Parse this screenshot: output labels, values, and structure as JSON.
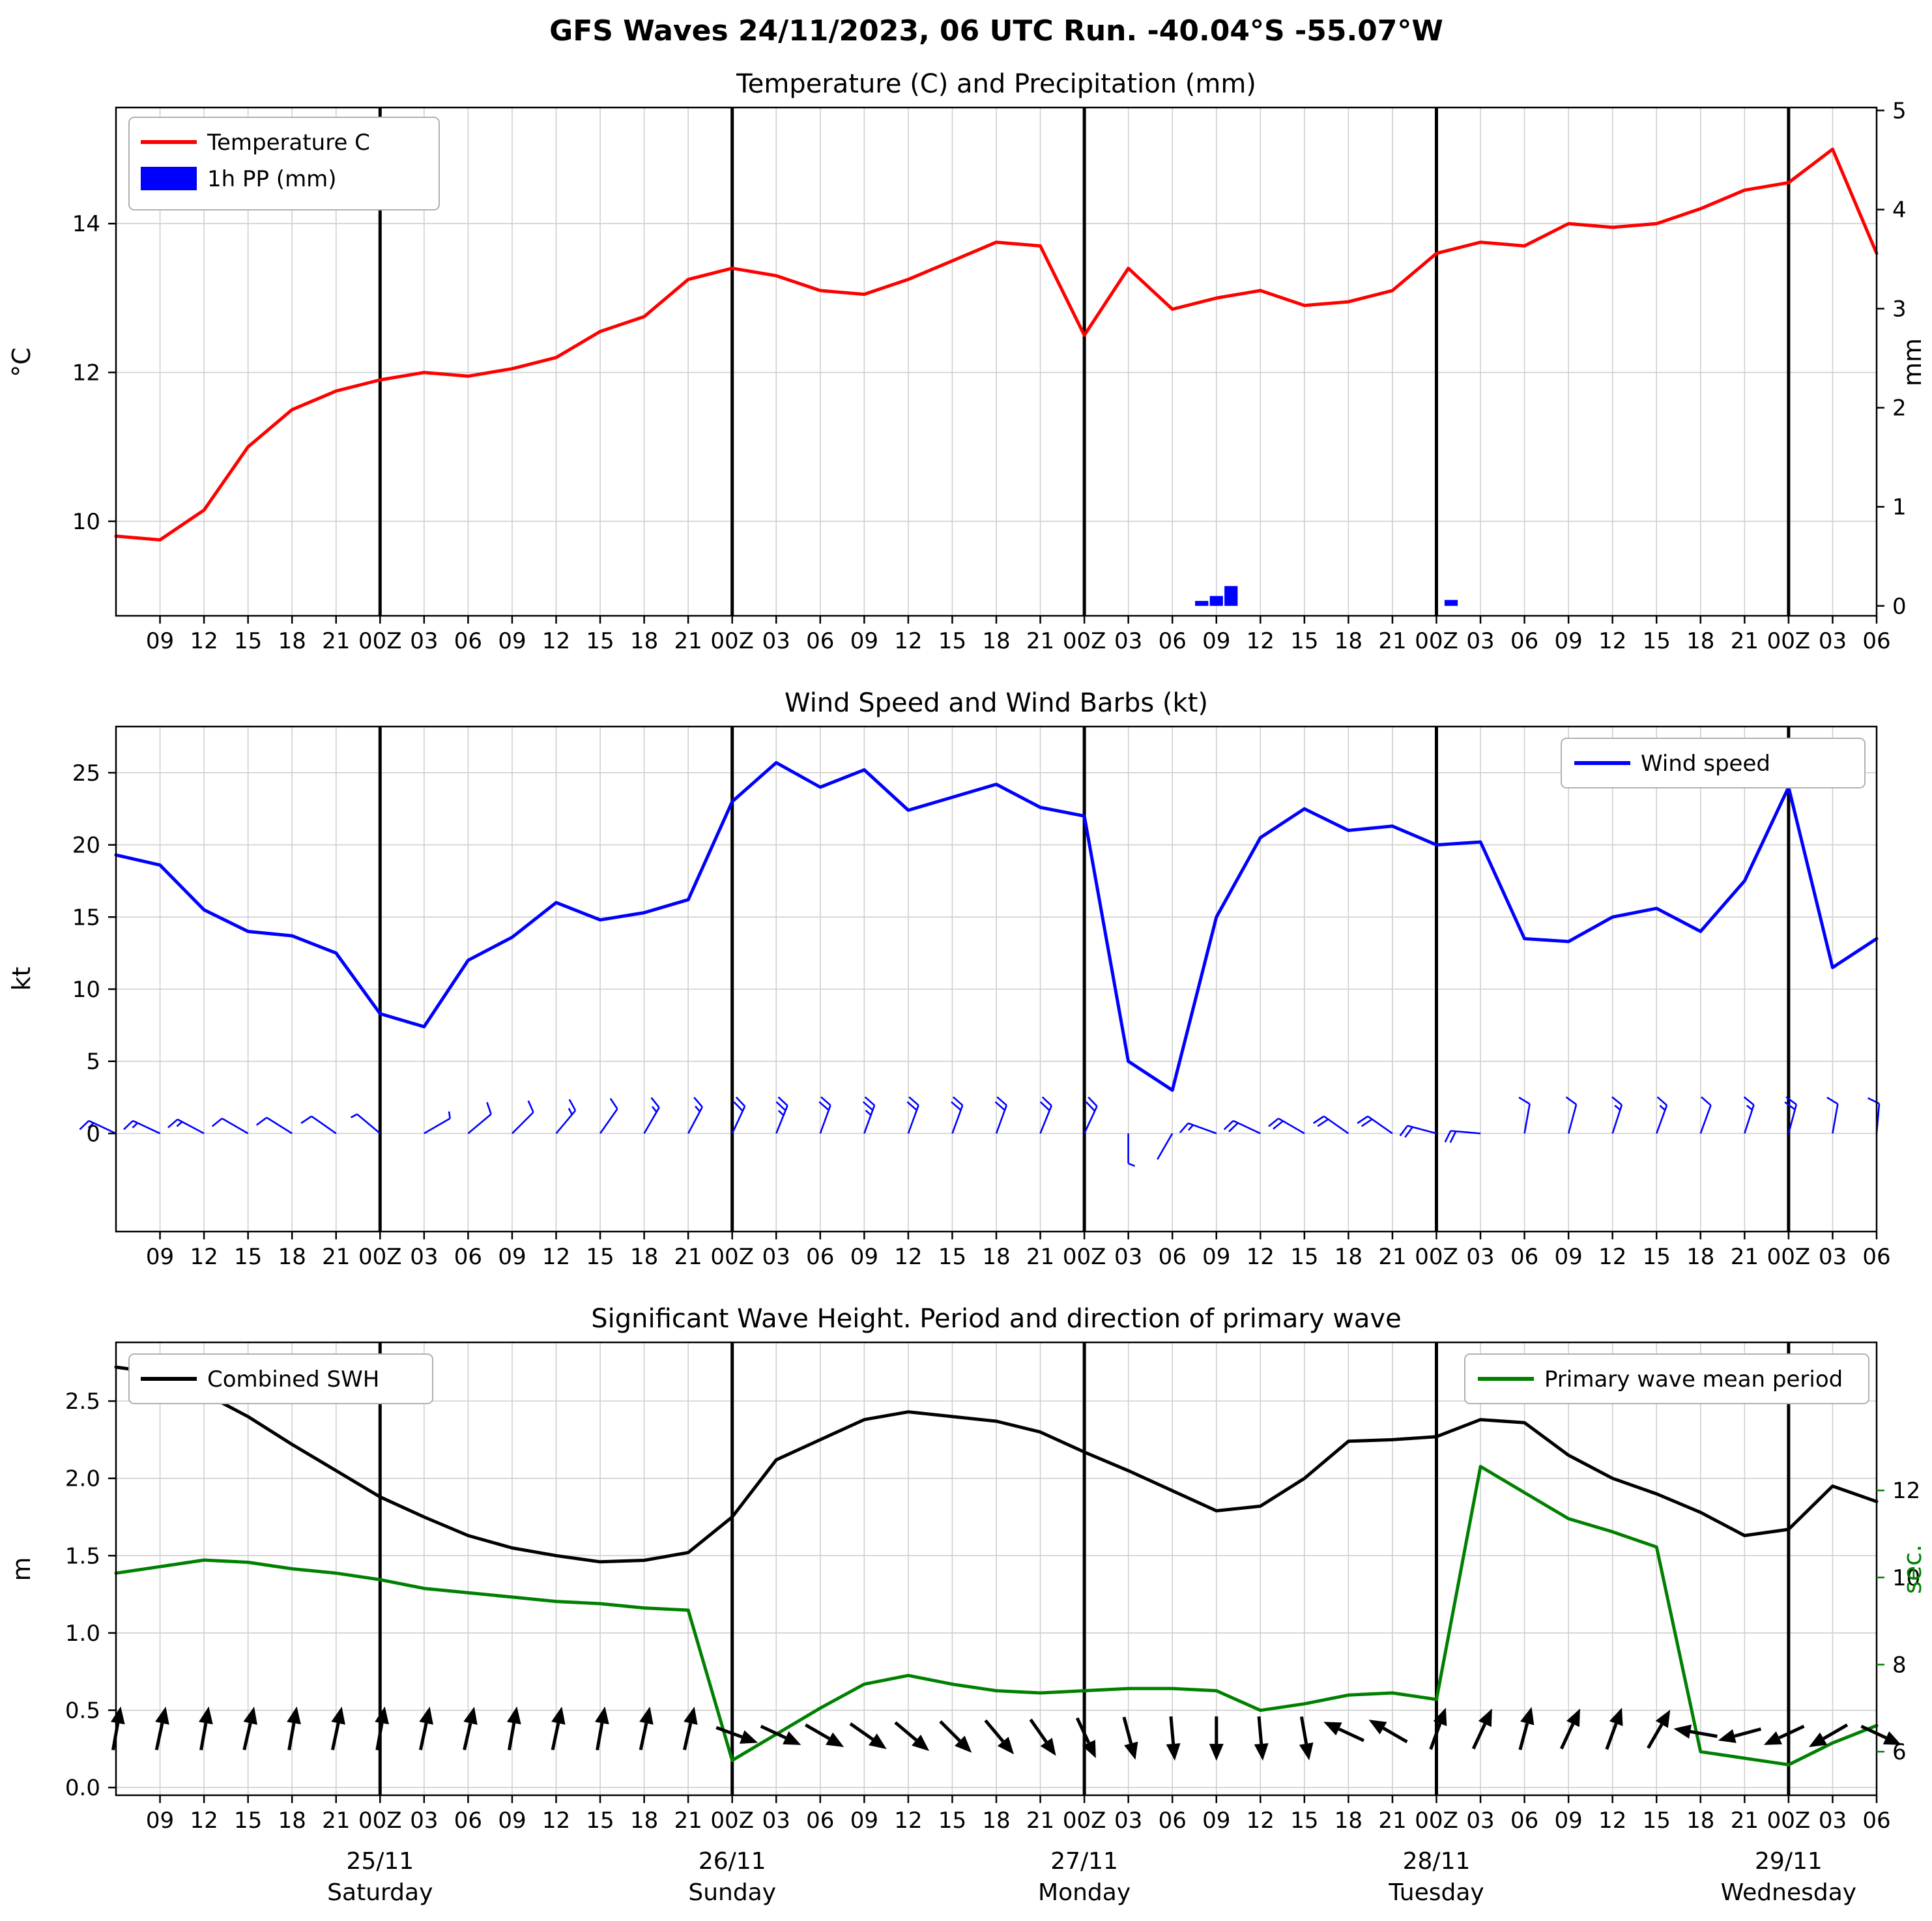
{
  "figure": {
    "title": "GFS Waves 24/11/2023, 06 UTC Run. -40.04°S -55.07°W"
  },
  "axis": {
    "x_step_hours": 3,
    "x_total_hours": 120,
    "x_tick_labels": [
      "09",
      "12",
      "15",
      "18",
      "21",
      "00Z",
      "03",
      "06",
      "09",
      "12",
      "15",
      "18",
      "21",
      "00Z",
      "03",
      "06",
      "09",
      "12",
      "15",
      "18",
      "21",
      "00Z",
      "03",
      "06",
      "09",
      "12",
      "15",
      "18",
      "21",
      "00Z",
      "03",
      "06",
      "09",
      "12",
      "15",
      "18",
      "21",
      "00Z",
      "03",
      "06"
    ],
    "day_line_hours": [
      18,
      42,
      66,
      90,
      114
    ],
    "day_labels": [
      {
        "date": "25/11",
        "name": "Saturday"
      },
      {
        "date": "26/11",
        "name": "Sunday"
      },
      {
        "date": "27/11",
        "name": "Monday"
      },
      {
        "date": "28/11",
        "name": "Tuesday"
      },
      {
        "date": "29/11",
        "name": "Wednesday"
      }
    ]
  },
  "chart_data": [
    {
      "type": "line+bar",
      "title": "Temperature (C) and Precipitation (mm)",
      "ylabel_left": "°C",
      "ylabel_right": "mm",
      "ylim_left": [
        8.73,
        15.56
      ],
      "yticks_left": [
        10,
        12,
        14
      ],
      "ylim_right": [
        -0.1,
        5.03
      ],
      "yticks_right": [
        0,
        1,
        2,
        3,
        4,
        5
      ],
      "legend_position": "top-left",
      "series": [
        {
          "name": "Temperature C",
          "type": "line",
          "axis": "left",
          "color": "#ff0000",
          "values": [
            9.8,
            9.75,
            10.15,
            11.0,
            11.5,
            11.75,
            11.9,
            12.0,
            11.95,
            12.05,
            12.2,
            12.55,
            12.75,
            13.25,
            13.4,
            13.3,
            13.1,
            13.05,
            13.25,
            13.5,
            13.75,
            13.7,
            12.5,
            13.4,
            12.85,
            13.0,
            13.1,
            12.9,
            12.95,
            13.1,
            13.6,
            13.75,
            13.7,
            14.0,
            13.95,
            14.0,
            14.2,
            14.45,
            14.55,
            15.0,
            13.6
          ]
        },
        {
          "name": "1h PP (mm)",
          "type": "bar",
          "axis": "right",
          "color": "#0000ff",
          "bars": [
            {
              "hour": 74,
              "mm": 0.05
            },
            {
              "hour": 75,
              "mm": 0.1
            },
            {
              "hour": 76,
              "mm": 0.2
            },
            {
              "hour": 91,
              "mm": 0.06
            }
          ]
        }
      ]
    },
    {
      "type": "line",
      "title": "Wind Speed and Wind Barbs (kt)",
      "ylabel_left": "kt",
      "ylim_left": [
        -6.8,
        28.2
      ],
      "yticks_left": [
        0,
        5,
        10,
        15,
        20,
        25
      ],
      "legend_position": "top-right",
      "series": [
        {
          "name": "Wind speed",
          "type": "line",
          "axis": "left",
          "color": "#0000ff",
          "values": [
            19.3,
            18.6,
            15.5,
            14.0,
            13.7,
            12.5,
            8.3,
            7.4,
            12.0,
            13.6,
            16.0,
            14.8,
            15.3,
            16.2,
            23.0,
            25.7,
            24.0,
            25.2,
            22.4,
            23.3,
            24.2,
            22.6,
            22.0,
            5.0,
            3.0,
            15.0,
            20.5,
            22.5,
            21.0,
            21.3,
            20.0,
            20.2,
            13.5,
            13.3,
            15.0,
            15.6,
            14.0,
            17.5,
            24.0,
            11.5,
            13.5
          ]
        }
      ],
      "barbs": {
        "color": "#0000ff",
        "angles_deg": [
          205,
          205,
          208,
          210,
          212,
          215,
          220,
          -30,
          -40,
          -45,
          -50,
          -55,
          -60,
          -62,
          -65,
          -68,
          -70,
          -70,
          -70,
          -70,
          -70,
          -68,
          -65,
          90,
          120,
          200,
          205,
          210,
          215,
          215,
          195,
          185,
          -80,
          -75,
          -72,
          -70,
          -70,
          -72,
          -75,
          -80,
          -85
        ]
      }
    },
    {
      "type": "line",
      "title": "Significant Wave Height. Period and direction of primary wave",
      "ylabel_left": "m",
      "ylabel_right": "sec.",
      "ylim_left": [
        -0.05,
        2.88
      ],
      "yticks_left": [
        0.0,
        0.5,
        1.0,
        1.5,
        2.0,
        2.5
      ],
      "ylim_right": [
        5.0,
        15.4
      ],
      "yticks_right": [
        6,
        8,
        10,
        12
      ],
      "right_axis_color": "#008000",
      "legend_positions": [
        "top-left",
        "top-right"
      ],
      "series": [
        {
          "name": "Combined SWH",
          "type": "line",
          "axis": "left",
          "color": "#000000",
          "values": [
            2.72,
            2.68,
            2.55,
            2.4,
            2.22,
            2.05,
            1.88,
            1.75,
            1.63,
            1.55,
            1.5,
            1.46,
            1.47,
            1.52,
            1.75,
            2.12,
            2.25,
            2.38,
            2.43,
            2.4,
            2.37,
            2.3,
            2.17,
            2.05,
            1.92,
            1.79,
            1.82,
            2.0,
            2.24,
            2.25,
            2.27,
            2.38,
            2.36,
            2.15,
            2.0,
            1.9,
            1.78,
            1.63,
            1.67,
            1.95,
            1.85
          ]
        },
        {
          "name": "Primary wave mean period",
          "type": "line",
          "axis": "right",
          "color": "#008000",
          "values": [
            10.1,
            10.25,
            10.4,
            10.35,
            10.2,
            10.1,
            9.95,
            9.75,
            9.65,
            9.55,
            9.45,
            9.4,
            9.3,
            9.25,
            5.8,
            6.4,
            7.0,
            7.55,
            7.75,
            7.55,
            7.4,
            7.35,
            7.4,
            7.45,
            7.45,
            7.4,
            6.95,
            7.1,
            7.3,
            7.35,
            7.2,
            12.55,
            11.95,
            11.35,
            11.05,
            10.7,
            6.0,
            5.85,
            5.7,
            6.2,
            6.6
          ]
        }
      ],
      "arrows": {
        "color": "#000000",
        "height_m": 0.35,
        "angles_deg": [
          -80,
          -78,
          -80,
          -77,
          -80,
          -78,
          -80,
          -78,
          -77,
          -80,
          -78,
          -80,
          -78,
          -77,
          20,
          25,
          30,
          35,
          40,
          45,
          50,
          55,
          65,
          75,
          85,
          90,
          85,
          80,
          -155,
          -150,
          -70,
          -65,
          -75,
          -65,
          -70,
          -60,
          -170,
          165,
          155,
          150,
          25
        ]
      }
    }
  ]
}
